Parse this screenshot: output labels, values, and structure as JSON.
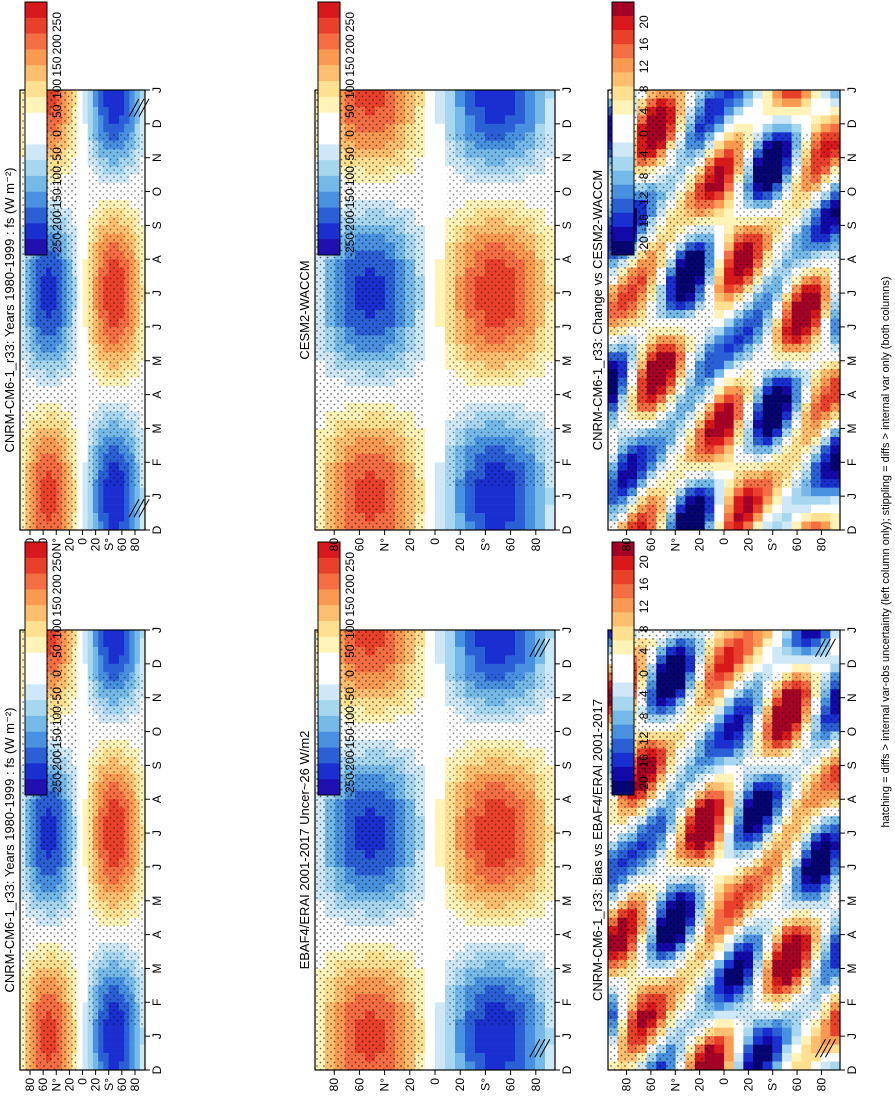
{
  "footnote": "hatching = diffs > internal var-obs uncertainty (left column only); stippling = diffs > internal var only (both columns)",
  "month_labels": [
    "D",
    "J",
    "F",
    "M",
    "A",
    "M",
    "J",
    "J",
    "A",
    "S",
    "O",
    "N",
    "D",
    "J"
  ],
  "lat_labels": [
    "80",
    "60",
    "N°",
    "20",
    "0",
    "20",
    "S°",
    "60",
    "80"
  ],
  "colors": {
    "diverging_abs": [
      "#d7191c",
      "#e8402a",
      "#f46d43",
      "#fa9a52",
      "#fdbf6f",
      "#fee090",
      "#fff3b8",
      "#ffffff",
      "#ffffff",
      "#cfe8f7",
      "#a6d6f0",
      "#74b9e8",
      "#4a90e0",
      "#2b5fd6",
      "#1a2fd0",
      "#2010b0"
    ],
    "diverging_diff": [
      "#a50026",
      "#d7191c",
      "#e8402a",
      "#f46d43",
      "#fa9a52",
      "#fdbf6f",
      "#fee090",
      "#fff3b8",
      "#ffffff",
      "#ffffff",
      "#cfe8f7",
      "#a6d6f0",
      "#74b9e8",
      "#4a90e0",
      "#2b5fd6",
      "#1a2fd0",
      "#1308a8",
      "#050470"
    ]
  },
  "chart_data": [
    {
      "type": "heatmap",
      "title": "CNRM-CM6-1_r33: Years 1980-1999 : fs (W m⁻²)",
      "x": [
        "D",
        "J",
        "F",
        "M",
        "A",
        "M",
        "J",
        "J",
        "A",
        "S",
        "O",
        "N",
        "D",
        "J"
      ],
      "y_ticks": [
        "80",
        "60",
        "N°",
        "20",
        "0",
        "20",
        "S°",
        "60",
        "80"
      ],
      "colorbar_ticks": [
        "250",
        "200",
        "150",
        "100",
        "50",
        "0",
        "-50",
        "-100",
        "-150",
        "-200",
        "-250"
      ],
      "colorbar_range": [
        -275,
        275
      ],
      "pattern": "abs",
      "hatched": true
    },
    {
      "type": "heatmap",
      "title": "CNRM-CM6-1_r33: Years 1980-1999 : fs (W m⁻²)",
      "x": [
        "D",
        "J",
        "F",
        "M",
        "A",
        "M",
        "J",
        "J",
        "A",
        "S",
        "O",
        "N",
        "D",
        "J"
      ],
      "y_ticks": [
        "80",
        "60",
        "N°",
        "20",
        "0",
        "20",
        "S°",
        "60",
        "80"
      ],
      "colorbar_ticks": [
        "250",
        "200",
        "150",
        "100",
        "50",
        "0",
        "-50",
        "-100",
        "-150",
        "-200",
        "-250"
      ],
      "colorbar_range": [
        -275,
        275
      ],
      "pattern": "abs",
      "hatched": false
    },
    {
      "type": "heatmap",
      "title": "EBAF4/ERAI 2001-2017 Uncer~26 W/m2",
      "x": [
        "D",
        "J",
        "F",
        "M",
        "A",
        "M",
        "J",
        "J",
        "A",
        "S",
        "O",
        "N",
        "D",
        "J"
      ],
      "y_ticks": [
        "80",
        "60",
        "N°",
        "20",
        "0",
        "20",
        "S°",
        "60",
        "80"
      ],
      "colorbar_ticks": [
        "250",
        "200",
        "150",
        "100",
        "50",
        "0",
        "-50",
        "-100",
        "-150",
        "-200",
        "-250"
      ],
      "colorbar_range": [
        -275,
        275
      ],
      "pattern": "abs",
      "hatched": true
    },
    {
      "type": "heatmap",
      "title": "CESM2-WACCM",
      "x": [
        "D",
        "J",
        "F",
        "M",
        "A",
        "M",
        "J",
        "J",
        "A",
        "S",
        "O",
        "N",
        "D",
        "J"
      ],
      "y_ticks": [
        "80",
        "60",
        "N°",
        "20",
        "0",
        "20",
        "S°",
        "60",
        "80"
      ],
      "colorbar_ticks": [
        "250",
        "200",
        "150",
        "100",
        "50",
        "0",
        "-50",
        "-100",
        "-150",
        "-200",
        "-250"
      ],
      "colorbar_range": [
        -275,
        275
      ],
      "pattern": "abs",
      "hatched": false
    },
    {
      "type": "heatmap",
      "title": "CNRM-CM6-1_r33: Bias vs EBAF4/ERAI 2001-2017",
      "x": [
        "D",
        "J",
        "F",
        "M",
        "A",
        "M",
        "J",
        "J",
        "A",
        "S",
        "O",
        "N",
        "D",
        "J"
      ],
      "y_ticks": [
        "80",
        "60",
        "N°",
        "20",
        "0",
        "20",
        "S°",
        "60",
        "80"
      ],
      "colorbar_ticks": [
        "20",
        "16",
        "12",
        "8",
        "4",
        "0",
        "-4",
        "-8",
        "-12",
        "-16",
        "-20"
      ],
      "colorbar_range": [
        -22,
        22
      ],
      "pattern": "bias",
      "hatched": true
    },
    {
      "type": "heatmap",
      "title": "CNRM-CM6-1_r33: Change vs CESM2-WACCM",
      "x": [
        "D",
        "J",
        "F",
        "M",
        "A",
        "M",
        "J",
        "J",
        "A",
        "S",
        "O",
        "N",
        "D",
        "J"
      ],
      "y_ticks": [
        "80",
        "60",
        "N°",
        "20",
        "0",
        "20",
        "S°",
        "60",
        "80"
      ],
      "colorbar_ticks": [
        "20",
        "16",
        "12",
        "8",
        "4",
        "0",
        "-4",
        "-8",
        "-12",
        "-16",
        "-20"
      ],
      "colorbar_range": [
        -22,
        22
      ],
      "pattern": "change",
      "hatched": false
    }
  ]
}
